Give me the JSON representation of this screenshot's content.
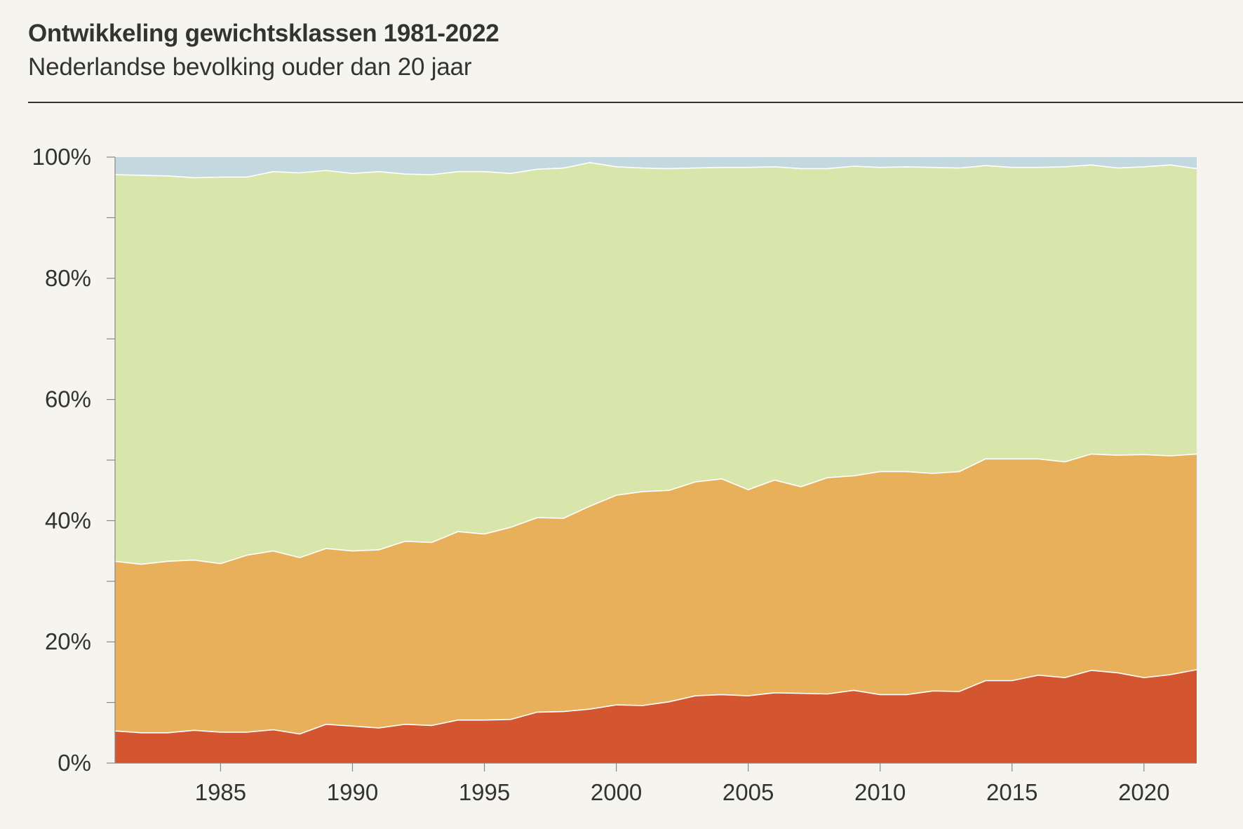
{
  "header": {
    "title": "Ontwikkeling gewichtsklassen 1981-2022",
    "subtitle": "Nederlandse bevolking ouder dan 20 jaar"
  },
  "chart_data": {
    "type": "area",
    "stacked": true,
    "title": "Ontwikkeling gewichtsklassen 1981-2022",
    "subtitle": "Nederlandse bevolking ouder dan 20 jaar",
    "xlabel": "",
    "ylabel": "",
    "xlim": [
      1981,
      2022
    ],
    "ylim": [
      0,
      100
    ],
    "y_unit": "%",
    "x": [
      1981,
      1982,
      1983,
      1984,
      1985,
      1986,
      1987,
      1988,
      1989,
      1990,
      1991,
      1992,
      1993,
      1994,
      1995,
      1996,
      1997,
      1998,
      1999,
      2000,
      2001,
      2002,
      2003,
      2004,
      2005,
      2006,
      2007,
      2008,
      2009,
      2010,
      2011,
      2012,
      2013,
      2014,
      2015,
      2016,
      2017,
      2018,
      2019,
      2020,
      2021,
      2022
    ],
    "x_ticks": [
      1985,
      1990,
      1995,
      2000,
      2005,
      2010,
      2015,
      2020
    ],
    "x_tick_labels": [
      "1985",
      "1990",
      "1995",
      "2000",
      "2005",
      "2010",
      "2015",
      "2020"
    ],
    "y_ticks": [
      0,
      20,
      40,
      60,
      80,
      100
    ],
    "y_tick_labels": [
      "0%",
      "20%",
      "40%",
      "60%",
      "80%",
      "100%"
    ],
    "y_minor_ticks": [
      10,
      30,
      50,
      70,
      90
    ],
    "legend": "none",
    "colors": {
      "background": "#f5f4ef",
      "text": "#333333",
      "separator": "#ffffff"
    },
    "series": [
      {
        "name": "band-1",
        "color": "#d35630",
        "values": [
          5.3,
          5.0,
          5.0,
          5.4,
          5.1,
          5.1,
          5.5,
          4.8,
          6.4,
          6.1,
          5.8,
          6.4,
          6.2,
          7.1,
          7.1,
          7.2,
          8.4,
          8.5,
          8.9,
          9.6,
          9.5,
          10.1,
          11.1,
          11.3,
          11.1,
          11.6,
          11.5,
          11.4,
          12.0,
          11.3,
          11.3,
          11.9,
          11.8,
          13.6,
          13.6,
          14.5,
          14.1,
          15.3,
          14.9,
          14.1,
          14.6,
          15.4
        ]
      },
      {
        "name": "band-2",
        "color": "#e9b05c",
        "values": [
          28.0,
          27.8,
          28.3,
          28.1,
          27.8,
          29.2,
          29.5,
          29.1,
          29.0,
          28.9,
          29.4,
          30.2,
          30.2,
          31.1,
          30.7,
          31.7,
          32.1,
          31.9,
          33.5,
          34.6,
          35.3,
          34.9,
          35.3,
          35.6,
          34.0,
          35.1,
          34.1,
          35.7,
          35.4,
          36.8,
          36.8,
          35.9,
          36.3,
          36.6,
          36.6,
          35.7,
          35.6,
          35.7,
          35.9,
          36.8,
          36.1,
          35.6
        ]
      },
      {
        "name": "band-3",
        "color": "#d9e6ab",
        "values": [
          63.8,
          64.2,
          63.6,
          63.1,
          63.8,
          62.4,
          62.6,
          63.5,
          62.4,
          62.3,
          62.4,
          60.6,
          60.7,
          59.4,
          59.8,
          58.4,
          57.5,
          57.8,
          56.7,
          54.2,
          53.4,
          53.1,
          51.8,
          51.4,
          53.2,
          51.7,
          52.5,
          51.0,
          51.1,
          50.2,
          50.3,
          50.5,
          50.1,
          48.4,
          48.1,
          48.1,
          48.7,
          47.7,
          47.4,
          47.5,
          48.0,
          47.1
        ]
      },
      {
        "name": "band-4",
        "color": "#c4d8df",
        "values": [
          2.9,
          3.0,
          3.1,
          3.4,
          3.3,
          3.3,
          2.4,
          2.6,
          2.2,
          2.7,
          2.4,
          2.8,
          2.9,
          2.4,
          2.4,
          2.7,
          2.0,
          1.8,
          1.9,
          1.6,
          1.8,
          1.9,
          1.8,
          1.7,
          1.7,
          1.6,
          1.9,
          1.9,
          1.5,
          1.7,
          1.6,
          1.7,
          1.8,
          1.4,
          1.7,
          1.7,
          1.6,
          1.3,
          1.8,
          1.6,
          1.3,
          1.9
        ]
      }
    ]
  }
}
